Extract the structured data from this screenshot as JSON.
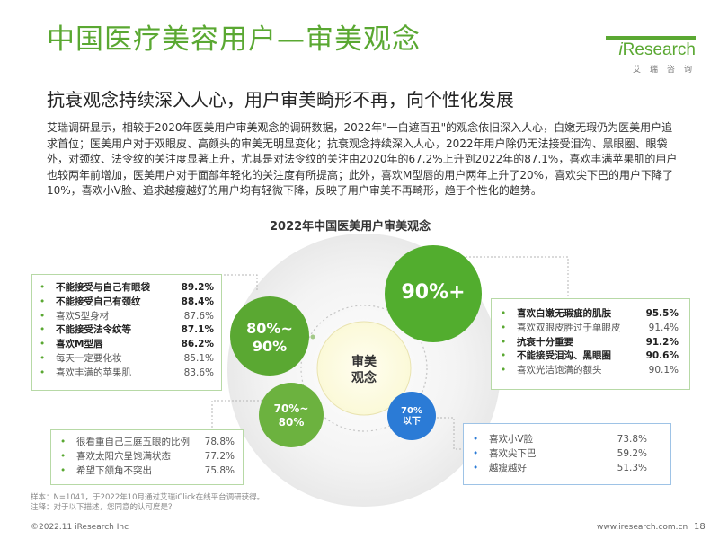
{
  "header": {
    "title": "中国医疗美容用户—审美观念",
    "subtitle": "抗衰观念持续深入人心，用户审美畸形不再，向个性化发展",
    "logo_text_i": "i",
    "logo_text_rest": "Research",
    "logo_sub": "艾瑞咨询"
  },
  "body_paragraph": "艾瑞调研显示，相较于2020年医美用户审美观念的调研数据，2022年\"一白遮百丑\"的观念依旧深入人心，白嫩无瑕仍为医美用户追求首位；医美用户对于双眼皮、高颜头的审美无明显变化；抗衰观念持续深入人心，2022年用户除仍无法接受泪沟、黑眼圈、眼袋外，对颈纹、法令纹的关注度显著上升，尤其是对法令纹的关注由2020年的67.2%上升到2022年的87.1%，喜欢丰满苹果肌的用户也较两年前增加，医美用户对于面部年轻化的关注度有所提高；此外，喜欢M型唇的用户两年上升了20%，喜欢尖下巴的用户下降了10%，喜欢小V脸、追求越瘦越好的用户均有轻微下降，反映了用户审美不再畸形，趋于个性化的趋势。",
  "diagram": {
    "title": "2022年中国医美用户审美观念",
    "center_line1": "审美",
    "center_line2": "观念",
    "circles": {
      "big": "90%+",
      "left_line1": "80%~",
      "left_line2": "90%",
      "bottom_line1": "70%~",
      "bottom_line2": "80%",
      "small_line1": "70%",
      "small_line2": "以下"
    },
    "left_list": [
      {
        "label": "不能接受与自己有眼袋",
        "value": "89.2%",
        "bold": true
      },
      {
        "label": "不能接受自己有颈纹",
        "value": "88.4%",
        "bold": true
      },
      {
        "label": "喜欢S型身材",
        "value": "87.6%",
        "bold": false
      },
      {
        "label": "不能接受法令纹等",
        "value": "87.1%",
        "bold": true
      },
      {
        "label": "喜欢M型唇",
        "value": "86.2%",
        "bold": true
      },
      {
        "label": "每天一定要化妆",
        "value": "85.1%",
        "bold": false
      },
      {
        "label": "喜欢丰满的苹果肌",
        "value": "83.6%",
        "bold": false
      }
    ],
    "right_list": [
      {
        "label": "喜欢白嫩无瑕疵的肌肤",
        "value": "95.5%",
        "bold": true
      },
      {
        "label": "喜欢双眼皮胜过于单眼皮",
        "value": "91.4%",
        "bold": false
      },
      {
        "label": "抗衰十分重要",
        "value": "91.2%",
        "bold": true
      },
      {
        "label": "不能接受泪沟、黑眼圈",
        "value": "90.6%",
        "bold": true
      },
      {
        "label": "喜欢光洁饱满的额头",
        "value": "90.1%",
        "bold": false
      }
    ],
    "bottom_list": [
      {
        "label": "很看重自己三庭五眼的比例",
        "value": "78.8%",
        "bold": false
      },
      {
        "label": "喜欢太阳穴呈饱满状态",
        "value": "77.2%",
        "bold": false
      },
      {
        "label": "希望下颌角不突出",
        "value": "75.8%",
        "bold": false
      }
    ],
    "blue_list": [
      {
        "label": "喜欢小V脸",
        "value": "73.8%",
        "bold": false
      },
      {
        "label": "喜欢尖下巴",
        "value": "59.2%",
        "bold": false
      },
      {
        "label": "越瘦越好",
        "value": "51.3%",
        "bold": false
      }
    ]
  },
  "footer": {
    "note_line1": "样本：N=1041，于2022年10月通过艾瑞iClick在线平台调研获得。",
    "note_line2": "注释：对于以下描述，您同意的认可度是？",
    "copyright": "©2022.11 iResearch Inc",
    "website": "www.iresearch.com.cn",
    "page": "18"
  },
  "colors": {
    "green": "#5aa832",
    "blue": "#2b7bd6",
    "light_green_box": "#b7d9a6"
  }
}
